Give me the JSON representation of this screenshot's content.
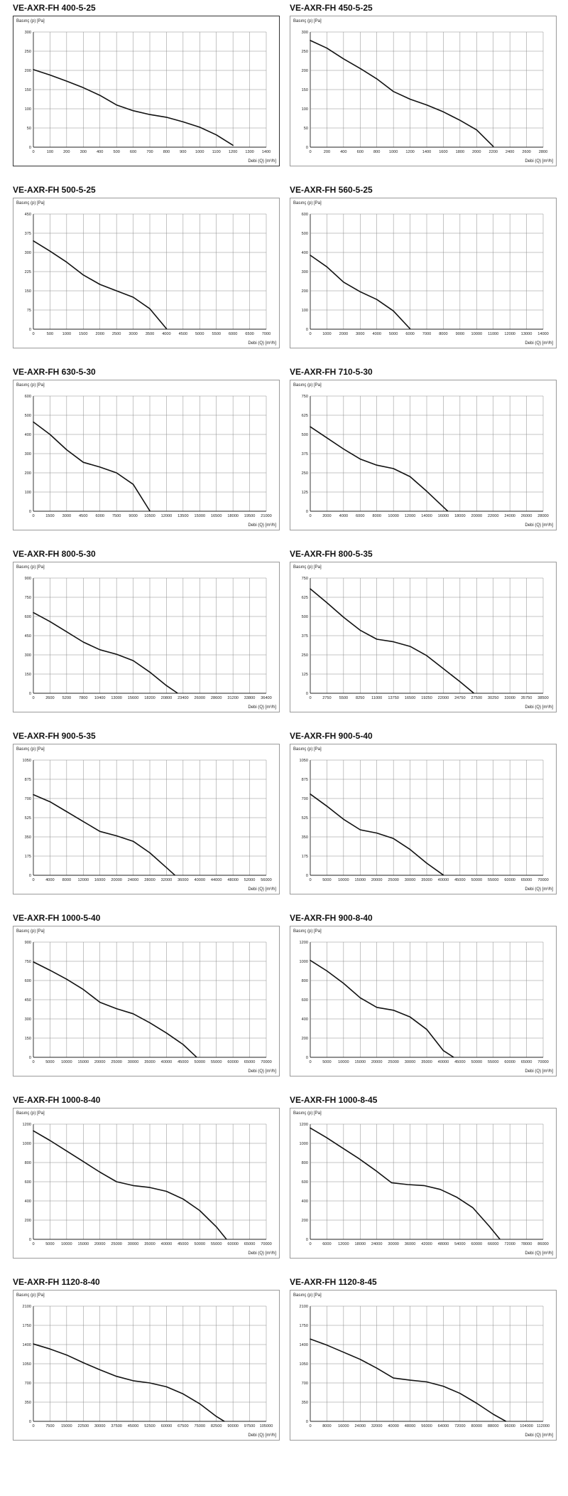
{
  "chart_data": [
    {
      "type": "line",
      "title": "VE-AXR-FH 400-5-25",
      "ylabel": "Basınç (p) [Pa]",
      "xlabel": "Debi (Q) [m³/h]",
      "xlim": [
        0,
        1400
      ],
      "ylim": [
        0,
        300
      ],
      "x_ticks": [
        "0",
        "100",
        "200",
        "300",
        "400",
        "500",
        "600",
        "700",
        "800",
        "900",
        "1000",
        "1100",
        "1200",
        "1300",
        "1400"
      ],
      "y_ticks": [
        "0",
        "50",
        "100",
        "150",
        "200",
        "250",
        "300"
      ],
      "series": [
        {
          "x": [
            0,
            100,
            200,
            300,
            400,
            500,
            600,
            700,
            800,
            900,
            1000,
            1100,
            1200
          ],
          "y": [
            202,
            188,
            172,
            155,
            135,
            110,
            95,
            85,
            78,
            66,
            52,
            32,
            5
          ]
        }
      ]
    },
    {
      "type": "line",
      "title": "VE-AXR-FH 450-5-25",
      "ylabel": "Basınç (p) [Pa]",
      "xlabel": "Debi (Q) [m³/h]",
      "xlim": [
        0,
        2800
      ],
      "ylim": [
        0,
        300
      ],
      "x_ticks": [
        "0",
        "200",
        "400",
        "600",
        "800",
        "1000",
        "1200",
        "1400",
        "1600",
        "1800",
        "2000",
        "2200",
        "2400",
        "2600",
        "2800"
      ],
      "y_ticks": [
        "0",
        "50",
        "100",
        "150",
        "200",
        "250",
        "300"
      ],
      "series": [
        {
          "x": [
            0,
            200,
            400,
            600,
            800,
            1000,
            1200,
            1400,
            1600,
            1800,
            2000,
            2200
          ],
          "y": [
            278,
            258,
            230,
            205,
            178,
            145,
            125,
            110,
            92,
            70,
            45,
            2
          ]
        }
      ]
    },
    {
      "type": "line",
      "title": "VE-AXR-FH 500-5-25",
      "ylabel": "Basınç (p) [Pa]",
      "xlabel": "Debi (Q) [m³/h]",
      "xlim": [
        0,
        7000
      ],
      "ylim": [
        0,
        450
      ],
      "x_ticks": [
        "0",
        "500",
        "1000",
        "1500",
        "2000",
        "2500",
        "3000",
        "3500",
        "4000",
        "4500",
        "5000",
        "5500",
        "6000",
        "6500",
        "7000"
      ],
      "y_ticks": [
        "0",
        "75",
        "150",
        "225",
        "300",
        "375",
        "450"
      ],
      "series": [
        {
          "x": [
            0,
            500,
            1000,
            1500,
            2000,
            2500,
            3000,
            3500,
            4000
          ],
          "y": [
            345,
            305,
            262,
            212,
            175,
            150,
            125,
            80,
            2
          ]
        }
      ]
    },
    {
      "type": "line",
      "title": "VE-AXR-FH 560-5-25",
      "ylabel": "Basınç (p) [Pa]",
      "xlabel": "Debi (Q) [m³/h]",
      "xlim": [
        0,
        14000
      ],
      "ylim": [
        0,
        600
      ],
      "x_ticks": [
        "0",
        "1000",
        "2000",
        "3000",
        "4000",
        "5000",
        "6000",
        "7000",
        "8000",
        "9000",
        "10000",
        "11000",
        "12000",
        "13000",
        "14000"
      ],
      "y_ticks": [
        "0",
        "100",
        "200",
        "300",
        "400",
        "500",
        "600"
      ],
      "series": [
        {
          "x": [
            0,
            1000,
            2000,
            3000,
            4000,
            5000,
            6000
          ],
          "y": [
            385,
            325,
            245,
            195,
            155,
            95,
            2
          ]
        }
      ]
    },
    {
      "type": "line",
      "title": "VE-AXR-FH 630-5-30",
      "ylabel": "Basınç (p) [Pa]",
      "xlabel": "Debi (Q) [m³/h]",
      "xlim": [
        0,
        21000
      ],
      "ylim": [
        0,
        600
      ],
      "x_ticks": [
        "0",
        "1500",
        "3000",
        "4500",
        "6000",
        "7500",
        "9000",
        "10500",
        "12000",
        "13500",
        "15000",
        "16500",
        "18000",
        "19500",
        "21000"
      ],
      "y_ticks": [
        "0",
        "100",
        "200",
        "300",
        "400",
        "500",
        "600"
      ],
      "series": [
        {
          "x": [
            0,
            1500,
            3000,
            4500,
            6000,
            7500,
            9000,
            10500
          ],
          "y": [
            465,
            400,
            320,
            255,
            230,
            200,
            140,
            2
          ]
        }
      ]
    },
    {
      "type": "line",
      "title": "VE-AXR-FH 710-5-30",
      "ylabel": "Basınç (p) [Pa]",
      "xlabel": "Debi (Q) [m³/h]",
      "xlim": [
        0,
        28000
      ],
      "ylim": [
        0,
        750
      ],
      "x_ticks": [
        "0",
        "2000",
        "4000",
        "6000",
        "8000",
        "10000",
        "12000",
        "14000",
        "16000",
        "18000",
        "20000",
        "22000",
        "24000",
        "26000",
        "28000"
      ],
      "y_ticks": [
        "0",
        "125",
        "250",
        "375",
        "500",
        "625",
        "750"
      ],
      "series": [
        {
          "x": [
            0,
            2000,
            4000,
            6000,
            8000,
            10000,
            12000,
            14000,
            16500
          ],
          "y": [
            550,
            478,
            405,
            340,
            300,
            278,
            225,
            130,
            2
          ]
        }
      ]
    },
    {
      "type": "line",
      "title": "VE-AXR-FH 800-5-30",
      "ylabel": "Basınç (p) [Pa]",
      "xlabel": "Debi (Q) [m³/h]",
      "xlim": [
        0,
        36400
      ],
      "ylim": [
        0,
        900
      ],
      "x_ticks": [
        "0",
        "2600",
        "5200",
        "7800",
        "10400",
        "13000",
        "15600",
        "18200",
        "20800",
        "23400",
        "26000",
        "28600",
        "31200",
        "33800",
        "36400"
      ],
      "y_ticks": [
        "0",
        "150",
        "300",
        "450",
        "600",
        "750",
        "900"
      ],
      "series": [
        {
          "x": [
            0,
            2600,
            5200,
            7800,
            10400,
            13000,
            15600,
            18200,
            20800,
            22500
          ],
          "y": [
            630,
            560,
            480,
            400,
            340,
            305,
            255,
            165,
            60,
            2
          ]
        }
      ]
    },
    {
      "type": "line",
      "title": "VE-AXR-FH 800-5-35",
      "ylabel": "Basınç (p) [Pa]",
      "xlabel": "Debi (Q) [m³/h]",
      "xlim": [
        0,
        38500
      ],
      "ylim": [
        0,
        750
      ],
      "x_ticks": [
        "0",
        "2750",
        "5500",
        "8250",
        "11000",
        "13750",
        "16500",
        "19250",
        "22000",
        "24750",
        "27500",
        "30250",
        "33000",
        "35750",
        "38500"
      ],
      "y_ticks": [
        "0",
        "125",
        "250",
        "375",
        "500",
        "625",
        "750"
      ],
      "series": [
        {
          "x": [
            0,
            2750,
            5500,
            8250,
            11000,
            13750,
            16500,
            19250,
            22000,
            24750,
            27000
          ],
          "y": [
            680,
            590,
            495,
            410,
            352,
            335,
            305,
            245,
            160,
            75,
            2
          ]
        }
      ]
    },
    {
      "type": "line",
      "title": "VE-AXR-FH 900-5-35",
      "ylabel": "Basınç (p) [Pa]",
      "xlabel": "Debi (Q) [m³/h]",
      "xlim": [
        0,
        56000
      ],
      "ylim": [
        0,
        1050
      ],
      "x_ticks": [
        "0",
        "4000",
        "8000",
        "12000",
        "16000",
        "20000",
        "24000",
        "28000",
        "32000",
        "36000",
        "40000",
        "44000",
        "48000",
        "52000",
        "56000"
      ],
      "y_ticks": [
        "0",
        "175",
        "350",
        "525",
        "700",
        "875",
        "1050"
      ],
      "series": [
        {
          "x": [
            0,
            4000,
            8000,
            12000,
            16000,
            20000,
            24000,
            28000,
            32000,
            34000
          ],
          "y": [
            735,
            670,
            580,
            490,
            400,
            360,
            310,
            205,
            70,
            2
          ]
        }
      ]
    },
    {
      "type": "line",
      "title": "VE-AXR-FH 900-5-40",
      "ylabel": "Basınç (p) [Pa]",
      "xlabel": "Debi (Q) [m³/h]",
      "xlim": [
        0,
        70000
      ],
      "ylim": [
        0,
        1050
      ],
      "x_ticks": [
        "0",
        "5000",
        "10000",
        "15000",
        "20000",
        "25000",
        "30000",
        "35000",
        "40000",
        "45000",
        "50000",
        "55000",
        "60000",
        "65000",
        "70000"
      ],
      "y_ticks": [
        "0",
        "175",
        "350",
        "525",
        "700",
        "875",
        "1050"
      ],
      "series": [
        {
          "x": [
            0,
            5000,
            10000,
            15000,
            20000,
            25000,
            30000,
            35000,
            40000
          ],
          "y": [
            740,
            630,
            510,
            415,
            385,
            335,
            235,
            110,
            2
          ]
        }
      ]
    },
    {
      "type": "line",
      "title": "VE-AXR-FH 1000-5-40",
      "ylabel": "Basınç (p) [Pa]",
      "xlabel": "Debi (Q) [m³/h]",
      "xlim": [
        0,
        70000
      ],
      "ylim": [
        0,
        900
      ],
      "x_ticks": [
        "0",
        "5000",
        "10000",
        "15000",
        "20000",
        "25000",
        "30000",
        "35000",
        "40000",
        "45000",
        "50000",
        "55000",
        "60000",
        "65000",
        "70000"
      ],
      "y_ticks": [
        "0",
        "150",
        "300",
        "450",
        "600",
        "750",
        "900"
      ],
      "series": [
        {
          "x": [
            0,
            5000,
            10000,
            15000,
            20000,
            25000,
            30000,
            35000,
            40000,
            45000,
            49000
          ],
          "y": [
            745,
            680,
            610,
            530,
            430,
            380,
            340,
            270,
            190,
            100,
            2
          ]
        }
      ]
    },
    {
      "type": "line",
      "title": "VE-AXR-FH 900-8-40",
      "ylabel": "Basınç (p) [Pa]",
      "xlabel": "Debi (Q) [m³/h]",
      "xlim": [
        0,
        70000
      ],
      "ylim": [
        0,
        1200
      ],
      "x_ticks": [
        "0",
        "5000",
        "10000",
        "15000",
        "20000",
        "25000",
        "30000",
        "35000",
        "40000",
        "45000",
        "50000",
        "55000",
        "60000",
        "65000",
        "70000"
      ],
      "y_ticks": [
        "0",
        "200",
        "400",
        "600",
        "800",
        "1000",
        "1200"
      ],
      "series": [
        {
          "x": [
            0,
            5000,
            10000,
            15000,
            20000,
            25000,
            30000,
            35000,
            40000,
            43000
          ],
          "y": [
            1010,
            900,
            770,
            620,
            520,
            490,
            420,
            290,
            70,
            2
          ]
        }
      ]
    },
    {
      "type": "line",
      "title": "VE-AXR-FH 1000-8-40",
      "ylabel": "Basınç (p) [Pa]",
      "xlabel": "Debi (Q) [m³/h]",
      "xlim": [
        0,
        70000
      ],
      "ylim": [
        0,
        1200
      ],
      "x_ticks": [
        "0",
        "5000",
        "10000",
        "15000",
        "20000",
        "25000",
        "30000",
        "35000",
        "40000",
        "45000",
        "50000",
        "55000",
        "60000",
        "65000",
        "70000"
      ],
      "y_ticks": [
        "0",
        "200",
        "400",
        "600",
        "800",
        "1000",
        "1200"
      ],
      "series": [
        {
          "x": [
            0,
            5000,
            10000,
            15000,
            20000,
            25000,
            30000,
            35000,
            40000,
            45000,
            50000,
            55000,
            58000
          ],
          "y": [
            1130,
            1030,
            920,
            810,
            700,
            600,
            560,
            540,
            500,
            420,
            300,
            130,
            2
          ]
        }
      ]
    },
    {
      "type": "line",
      "title": "VE-AXR-FH 1000-8-45",
      "ylabel": "Basınç (p) [Pa]",
      "xlabel": "Debi (Q) [m³/h]",
      "xlim": [
        0,
        86000
      ],
      "ylim": [
        0,
        1200
      ],
      "x_ticks": [
        "0",
        "6000",
        "12000",
        "18000",
        "24000",
        "30000",
        "36000",
        "42000",
        "48000",
        "54000",
        "60000",
        "66000",
        "72000",
        "78000",
        "86000"
      ],
      "y_ticks": [
        "0",
        "200",
        "400",
        "600",
        "800",
        "1000",
        "1200"
      ],
      "series": [
        {
          "x": [
            0,
            6000,
            12000,
            18000,
            24000,
            30000,
            36000,
            42000,
            48000,
            54000,
            60000,
            66000,
            70000
          ],
          "y": [
            1160,
            1060,
            950,
            840,
            720,
            590,
            570,
            560,
            520,
            440,
            330,
            140,
            2
          ]
        }
      ]
    },
    {
      "type": "line",
      "title": "VE-AXR-FH 1120-8-40",
      "ylabel": "Basınç (p) [Pa]",
      "xlabel": "Debi (Q) [m³/h]",
      "xlim": [
        0,
        105000
      ],
      "ylim": [
        0,
        2100
      ],
      "x_ticks": [
        "0",
        "7500",
        "15000",
        "22500",
        "30000",
        "37500",
        "45000",
        "52500",
        "60000",
        "67500",
        "75000",
        "82500",
        "90000",
        "97500",
        "105000"
      ],
      "y_ticks": [
        "0",
        "350",
        "700",
        "1050",
        "1400",
        "1750",
        "2100"
      ],
      "series": [
        {
          "x": [
            0,
            7500,
            15000,
            22500,
            30000,
            37500,
            45000,
            52500,
            60000,
            67500,
            75000,
            82500,
            86000
          ],
          "y": [
            1410,
            1320,
            1210,
            1070,
            940,
            820,
            740,
            700,
            630,
            500,
            320,
            90,
            2
          ]
        }
      ]
    },
    {
      "type": "line",
      "title": "VE-AXR-FH 1120-8-45",
      "ylabel": "Basınç (p) [Pa]",
      "xlabel": "Debi (Q) [m³/h]",
      "xlim": [
        0,
        112000
      ],
      "ylim": [
        0,
        2100
      ],
      "x_ticks": [
        "0",
        "8000",
        "16000",
        "24000",
        "32000",
        "40000",
        "48000",
        "56000",
        "64000",
        "72000",
        "80000",
        "88000",
        "96000",
        "104000",
        "112000"
      ],
      "y_ticks": [
        "0",
        "350",
        "700",
        "1050",
        "1400",
        "1750",
        "2100"
      ],
      "series": [
        {
          "x": [
            0,
            8000,
            16000,
            24000,
            32000,
            40000,
            48000,
            56000,
            64000,
            72000,
            80000,
            88000,
            94000
          ],
          "y": [
            1500,
            1390,
            1260,
            1130,
            970,
            790,
            750,
            720,
            640,
            510,
            330,
            130,
            2
          ]
        }
      ]
    }
  ]
}
